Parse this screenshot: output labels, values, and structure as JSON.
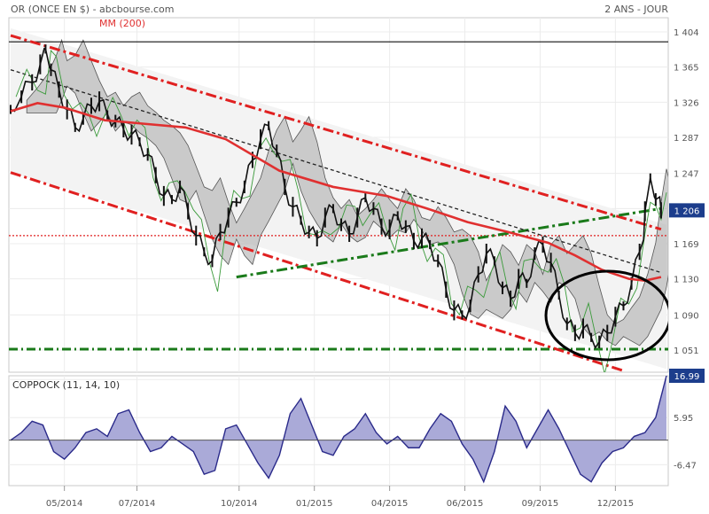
{
  "header": {
    "title": "OR (ONCE EN $) - abcbourse.com",
    "period": "2 ANS - JOUR"
  },
  "colors": {
    "price": "#111111",
    "ma": "#e03030",
    "trend_red": "#e02020",
    "trend_green": "#1a7a1a",
    "cloud_fill": "#a8a8a8",
    "coppock_fill": "#aaaad8",
    "coppock_line": "#2a2a8a",
    "price_badge": "#1c3d8c"
  },
  "chart_data": [
    {
      "type": "line",
      "title": "OR (ONCE EN $)",
      "ma_label": "MM (200)",
      "y_ticks": [
        1404,
        1365,
        1326,
        1287,
        1247,
        1208,
        1169,
        1130,
        1090,
        1051
      ],
      "y_tick_labels": [
        "1 404",
        "1 365",
        "1 326",
        "1 287",
        "1 247",
        "",
        "1 169",
        "1 130",
        "1 090",
        "1 051"
      ],
      "ylim": [
        1030,
        1420
      ],
      "last_price_label": "1 206",
      "last_price": 1206,
      "x_labels": [
        "05/2014",
        "07/2014",
        "10/2014",
        "01/2015",
        "04/2015",
        "06/2015",
        "09/2015",
        "12/2015"
      ],
      "horizontal_levels": [
        {
          "value": 1393,
          "style": "solid"
        },
        {
          "value": 1178,
          "style": "dotted-red"
        },
        {
          "value": 1052,
          "style": "dash-dot-green"
        }
      ],
      "price_series": [
        {
          "x": 0,
          "y": 1318
        },
        {
          "x": 4,
          "y": 1332
        },
        {
          "x": 8,
          "y": 1348
        },
        {
          "x": 11,
          "y": 1368
        },
        {
          "x": 13,
          "y": 1385
        },
        {
          "x": 15,
          "y": 1362
        },
        {
          "x": 18,
          "y": 1340
        },
        {
          "x": 21,
          "y": 1318
        },
        {
          "x": 24,
          "y": 1298
        },
        {
          "x": 27,
          "y": 1308
        },
        {
          "x": 30,
          "y": 1322
        },
        {
          "x": 33,
          "y": 1327
        },
        {
          "x": 36,
          "y": 1312
        },
        {
          "x": 39,
          "y": 1305
        },
        {
          "x": 42,
          "y": 1296
        },
        {
          "x": 45,
          "y": 1290
        },
        {
          "x": 48,
          "y": 1282
        },
        {
          "x": 51,
          "y": 1268
        },
        {
          "x": 54,
          "y": 1245
        },
        {
          "x": 57,
          "y": 1222
        },
        {
          "x": 60,
          "y": 1218
        },
        {
          "x": 63,
          "y": 1232
        },
        {
          "x": 66,
          "y": 1205
        },
        {
          "x": 69,
          "y": 1178
        },
        {
          "x": 72,
          "y": 1160
        },
        {
          "x": 75,
          "y": 1150
        },
        {
          "x": 78,
          "y": 1182
        },
        {
          "x": 81,
          "y": 1198
        },
        {
          "x": 84,
          "y": 1215
        },
        {
          "x": 87,
          "y": 1232
        },
        {
          "x": 90,
          "y": 1262
        },
        {
          "x": 93,
          "y": 1285
        },
        {
          "x": 96,
          "y": 1300
        },
        {
          "x": 99,
          "y": 1272
        },
        {
          "x": 102,
          "y": 1232
        },
        {
          "x": 105,
          "y": 1210
        },
        {
          "x": 108,
          "y": 1195
        },
        {
          "x": 111,
          "y": 1182
        },
        {
          "x": 114,
          "y": 1175
        },
        {
          "x": 117,
          "y": 1198
        },
        {
          "x": 120,
          "y": 1208
        },
        {
          "x": 123,
          "y": 1190
        },
        {
          "x": 126,
          "y": 1180
        },
        {
          "x": 129,
          "y": 1198
        },
        {
          "x": 132,
          "y": 1220
        },
        {
          "x": 135,
          "y": 1208
        },
        {
          "x": 138,
          "y": 1188
        },
        {
          "x": 141,
          "y": 1185
        },
        {
          "x": 144,
          "y": 1200
        },
        {
          "x": 147,
          "y": 1188
        },
        {
          "x": 150,
          "y": 1172
        },
        {
          "x": 153,
          "y": 1175
        },
        {
          "x": 156,
          "y": 1168
        },
        {
          "x": 159,
          "y": 1150
        },
        {
          "x": 162,
          "y": 1118
        },
        {
          "x": 165,
          "y": 1095
        },
        {
          "x": 168,
          "y": 1090
        },
        {
          "x": 171,
          "y": 1100
        },
        {
          "x": 174,
          "y": 1135
        },
        {
          "x": 177,
          "y": 1158
        },
        {
          "x": 180,
          "y": 1150
        },
        {
          "x": 183,
          "y": 1120
        },
        {
          "x": 186,
          "y": 1108
        },
        {
          "x": 189,
          "y": 1130
        },
        {
          "x": 192,
          "y": 1125
        },
        {
          "x": 195,
          "y": 1158
        },
        {
          "x": 198,
          "y": 1168
        },
        {
          "x": 201,
          "y": 1148
        },
        {
          "x": 204,
          "y": 1112
        },
        {
          "x": 207,
          "y": 1080
        },
        {
          "x": 210,
          "y": 1070
        },
        {
          "x": 213,
          "y": 1075
        },
        {
          "x": 216,
          "y": 1065
        },
        {
          "x": 219,
          "y": 1060
        },
        {
          "x": 222,
          "y": 1070
        },
        {
          "x": 225,
          "y": 1088
        },
        {
          "x": 228,
          "y": 1100
        },
        {
          "x": 231,
          "y": 1125
        },
        {
          "x": 234,
          "y": 1160
        },
        {
          "x": 236,
          "y": 1205
        },
        {
          "x": 238,
          "y": 1242
        },
        {
          "x": 240,
          "y": 1218
        },
        {
          "x": 242,
          "y": 1206
        }
      ],
      "ma_series": [
        {
          "x": 0,
          "y": 1316
        },
        {
          "x": 10,
          "y": 1325
        },
        {
          "x": 20,
          "y": 1320
        },
        {
          "x": 35,
          "y": 1306
        },
        {
          "x": 50,
          "y": 1302
        },
        {
          "x": 65,
          "y": 1298
        },
        {
          "x": 80,
          "y": 1285
        },
        {
          "x": 100,
          "y": 1250
        },
        {
          "x": 120,
          "y": 1232
        },
        {
          "x": 140,
          "y": 1222
        },
        {
          "x": 155,
          "y": 1208
        },
        {
          "x": 170,
          "y": 1193
        },
        {
          "x": 185,
          "y": 1182
        },
        {
          "x": 200,
          "y": 1170
        },
        {
          "x": 210,
          "y": 1156
        },
        {
          "x": 220,
          "y": 1140
        },
        {
          "x": 230,
          "y": 1130
        },
        {
          "x": 236,
          "y": 1128
        },
        {
          "x": 242,
          "y": 1132
        }
      ],
      "trendlines": [
        {
          "style": "red-upper",
          "from": {
            "x": 0,
            "y": 1400
          },
          "to": {
            "x": 242,
            "y": 1185
          }
        },
        {
          "style": "red-lower",
          "from": {
            "x": 0,
            "y": 1248
          },
          "to": {
            "x": 228,
            "y": 1028
          }
        },
        {
          "style": "green",
          "from": {
            "x": 84,
            "y": 1132
          },
          "to": {
            "x": 242,
            "y": 1208
          }
        },
        {
          "style": "black-dash",
          "from": {
            "x": 0,
            "y": 1362
          },
          "to": {
            "x": 242,
            "y": 1137
          }
        }
      ]
    },
    {
      "type": "area",
      "title": "COPPOCK (11, 14, 10)",
      "y_ticks": [
        5.95,
        -6.47
      ],
      "y_tick_labels": [
        "5.95",
        "-6.47"
      ],
      "ylim": [
        -12,
        17
      ],
      "last_value_label": "16.99",
      "series": [
        {
          "x": 0,
          "y": 0
        },
        {
          "x": 4,
          "y": 2
        },
        {
          "x": 8,
          "y": 5
        },
        {
          "x": 12,
          "y": 4
        },
        {
          "x": 16,
          "y": -3
        },
        {
          "x": 20,
          "y": -5
        },
        {
          "x": 24,
          "y": -2
        },
        {
          "x": 28,
          "y": 2
        },
        {
          "x": 32,
          "y": 3
        },
        {
          "x": 36,
          "y": 1
        },
        {
          "x": 40,
          "y": 7
        },
        {
          "x": 44,
          "y": 8
        },
        {
          "x": 48,
          "y": 2
        },
        {
          "x": 52,
          "y": -3
        },
        {
          "x": 56,
          "y": -2
        },
        {
          "x": 60,
          "y": 1
        },
        {
          "x": 64,
          "y": -1
        },
        {
          "x": 68,
          "y": -3
        },
        {
          "x": 72,
          "y": -9
        },
        {
          "x": 76,
          "y": -8
        },
        {
          "x": 80,
          "y": 3
        },
        {
          "x": 84,
          "y": 4
        },
        {
          "x": 88,
          "y": -1
        },
        {
          "x": 92,
          "y": -6
        },
        {
          "x": 96,
          "y": -10
        },
        {
          "x": 100,
          "y": -4
        },
        {
          "x": 104,
          "y": 7
        },
        {
          "x": 108,
          "y": 11
        },
        {
          "x": 112,
          "y": 4
        },
        {
          "x": 116,
          "y": -3
        },
        {
          "x": 120,
          "y": -4
        },
        {
          "x": 124,
          "y": 1
        },
        {
          "x": 128,
          "y": 3
        },
        {
          "x": 132,
          "y": 7
        },
        {
          "x": 136,
          "y": 2
        },
        {
          "x": 140,
          "y": -1
        },
        {
          "x": 144,
          "y": 1
        },
        {
          "x": 148,
          "y": -2
        },
        {
          "x": 152,
          "y": -2
        },
        {
          "x": 156,
          "y": 3
        },
        {
          "x": 160,
          "y": 7
        },
        {
          "x": 164,
          "y": 5
        },
        {
          "x": 168,
          "y": -1
        },
        {
          "x": 172,
          "y": -5
        },
        {
          "x": 176,
          "y": -11
        },
        {
          "x": 180,
          "y": -3
        },
        {
          "x": 184,
          "y": 9
        },
        {
          "x": 188,
          "y": 5
        },
        {
          "x": 192,
          "y": -2
        },
        {
          "x": 196,
          "y": 3
        },
        {
          "x": 200,
          "y": 8
        },
        {
          "x": 204,
          "y": 3
        },
        {
          "x": 208,
          "y": -3
        },
        {
          "x": 212,
          "y": -9
        },
        {
          "x": 216,
          "y": -11
        },
        {
          "x": 220,
          "y": -6
        },
        {
          "x": 224,
          "y": -3
        },
        {
          "x": 228,
          "y": -2
        },
        {
          "x": 232,
          "y": 1
        },
        {
          "x": 236,
          "y": 2
        },
        {
          "x": 240,
          "y": 6
        },
        {
          "x": 244,
          "y": 17
        }
      ]
    }
  ]
}
